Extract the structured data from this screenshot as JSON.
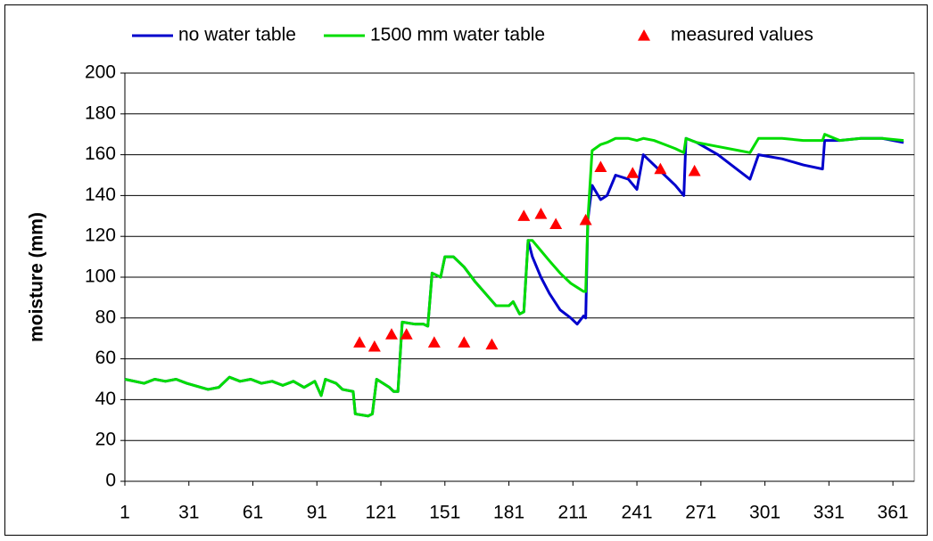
{
  "chart_data": {
    "type": "line",
    "y_label": "moisture (mm)",
    "legend": "top",
    "grid": true,
    "xlim": [
      1,
      371
    ],
    "xticks": [
      1,
      31,
      61,
      91,
      121,
      151,
      181,
      211,
      241,
      271,
      301,
      331,
      361
    ],
    "ylim": [
      0,
      200
    ],
    "yticks": [
      0,
      20,
      40,
      60,
      80,
      100,
      120,
      140,
      160,
      180,
      200
    ],
    "x": [
      1,
      10,
      15,
      20,
      25,
      30,
      40,
      45,
      50,
      55,
      60,
      65,
      70,
      75,
      80,
      85,
      90,
      93,
      95,
      100,
      103,
      108,
      109,
      115,
      117,
      119,
      125,
      127,
      129,
      131,
      137,
      141,
      143,
      145,
      149,
      151,
      155,
      160,
      165,
      170,
      175,
      181,
      183,
      186,
      188,
      190,
      192,
      196,
      200,
      205,
      210,
      213,
      216,
      217,
      218,
      220,
      224,
      227,
      231,
      237,
      241,
      244,
      249,
      254,
      259,
      263,
      264,
      269,
      279,
      289,
      294,
      298,
      309,
      319,
      328,
      329,
      336,
      346,
      356,
      366
    ],
    "series": [
      {
        "name": "no water table",
        "color": "#0000cc",
        "values": [
          50,
          48,
          50,
          49,
          50,
          48,
          45,
          46,
          51,
          49,
          50,
          48,
          49,
          47,
          49,
          46,
          49,
          42,
          50,
          48,
          45,
          44,
          33,
          32,
          33,
          50,
          46,
          44,
          44,
          78,
          77,
          77,
          76,
          102,
          100,
          110,
          110,
          105,
          98,
          92,
          86,
          86,
          88,
          82,
          83,
          118,
          110,
          100,
          92,
          84,
          80,
          77,
          81,
          80,
          128,
          145,
          138,
          140,
          150,
          148,
          143,
          160,
          155,
          150,
          145,
          140,
          168,
          166,
          160,
          152,
          148,
          160,
          158,
          155,
          153,
          167,
          167,
          168,
          168,
          166
        ]
      },
      {
        "name": "1500 mm water table",
        "color": "#00dd00",
        "values": [
          50,
          48,
          50,
          49,
          50,
          48,
          45,
          46,
          51,
          49,
          50,
          48,
          49,
          47,
          49,
          46,
          49,
          42,
          50,
          48,
          45,
          44,
          33,
          32,
          33,
          50,
          46,
          44,
          44,
          78,
          77,
          77,
          76,
          102,
          100,
          110,
          110,
          105,
          98,
          92,
          86,
          86,
          88,
          82,
          83,
          118,
          118,
          113,
          108,
          102,
          97,
          95,
          93,
          93,
          128,
          162,
          165,
          166,
          168,
          168,
          167,
          168,
          167,
          165,
          163,
          161,
          168,
          166,
          164,
          162,
          161,
          168,
          168,
          167,
          167,
          170,
          167,
          168,
          168,
          167
        ]
      },
      {
        "name": "measured values",
        "color": "#ff0000",
        "marker": "triangle",
        "x": [
          111,
          118,
          126,
          133,
          146,
          160,
          173,
          188,
          196,
          203,
          217,
          224,
          239,
          252,
          268
        ],
        "values": [
          68,
          66,
          72,
          72,
          68,
          68,
          67,
          130,
          131,
          126,
          128,
          154,
          151,
          153,
          152
        ]
      }
    ]
  }
}
